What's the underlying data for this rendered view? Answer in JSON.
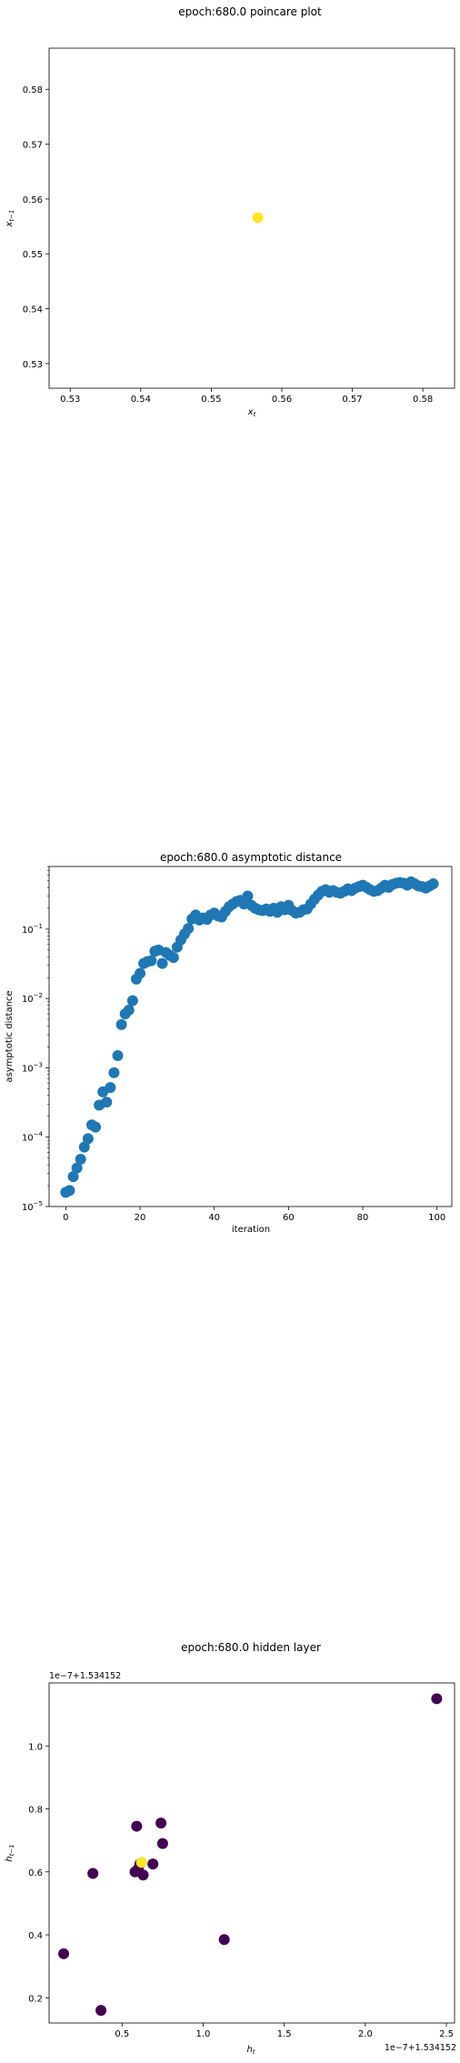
{
  "chart_data": [
    {
      "type": "scatter",
      "title": "epoch:680.0 poincare plot",
      "xlabel": "x_t",
      "ylabel": "x_{t-1}",
      "xlim": [
        0.527,
        0.5845
      ],
      "ylim": [
        0.5255,
        0.5875
      ],
      "xticks": [
        0.53,
        0.54,
        0.55,
        0.56,
        0.57,
        0.58
      ],
      "yticks": [
        0.53,
        0.54,
        0.55,
        0.56,
        0.57,
        0.58
      ],
      "xticklabels": [
        "0.53",
        "0.54",
        "0.55",
        "0.56",
        "0.57",
        "0.58"
      ],
      "yticklabels": [
        "0.53",
        "0.54",
        "0.55",
        "0.56",
        "0.57",
        "0.58"
      ],
      "points": [
        {
          "x": 0.5566,
          "y": 0.5566,
          "color": "#fde725"
        }
      ],
      "grid": false
    },
    {
      "type": "scatter",
      "title": "epoch:680.0 asymptotic distance",
      "xlabel": "iteration",
      "ylabel": "asymptotic distance",
      "xlim": [
        -4.5,
        104
      ],
      "ylog": true,
      "ylim": [
        1e-05,
        0.8
      ],
      "xticks": [
        0,
        20,
        40,
        60,
        80,
        100
      ],
      "xticklabels": [
        "0",
        "20",
        "40",
        "60",
        "80",
        "100"
      ],
      "yticks": [
        1e-05,
        0.0001,
        0.001,
        0.01,
        0.1
      ],
      "color": "#1f77b4",
      "x": [
        0,
        1,
        2,
        3,
        4,
        5,
        6,
        7,
        8,
        9,
        10,
        11,
        12,
        13,
        14,
        15,
        16,
        17,
        18,
        19,
        20,
        21,
        22,
        23,
        24,
        25,
        26,
        27,
        28,
        29,
        30,
        31,
        32,
        33,
        34,
        35,
        36,
        37,
        38,
        39,
        40,
        41,
        42,
        43,
        44,
        45,
        46,
        47,
        48,
        49,
        50,
        51,
        52,
        53,
        54,
        55,
        56,
        57,
        58,
        59,
        60,
        61,
        62,
        63,
        64,
        65,
        66,
        67,
        68,
        69,
        70,
        71,
        72,
        73,
        74,
        75,
        76,
        77,
        78,
        79,
        80,
        81,
        82,
        83,
        84,
        85,
        86,
        87,
        88,
        89,
        90,
        91,
        92,
        93,
        94,
        95,
        96,
        97,
        98,
        99
      ],
      "values": [
        1.6e-05,
        1.7e-05,
        2.7e-05,
        3.6e-05,
        4.8e-05,
        7.2e-05,
        9.5e-05,
        0.00015,
        0.00014,
        0.00029,
        0.00045,
        0.00032,
        0.00052,
        0.00085,
        0.0015,
        0.0042,
        0.006,
        0.0068,
        0.0093,
        0.019,
        0.023,
        0.032,
        0.034,
        0.035,
        0.048,
        0.05,
        0.032,
        0.046,
        0.042,
        0.039,
        0.055,
        0.07,
        0.085,
        0.102,
        0.14,
        0.16,
        0.135,
        0.145,
        0.138,
        0.16,
        0.17,
        0.155,
        0.15,
        0.18,
        0.21,
        0.23,
        0.25,
        0.26,
        0.23,
        0.3,
        0.22,
        0.2,
        0.19,
        0.185,
        0.195,
        0.18,
        0.2,
        0.175,
        0.21,
        0.19,
        0.22,
        0.185,
        0.17,
        0.175,
        0.19,
        0.195,
        0.23,
        0.27,
        0.31,
        0.35,
        0.37,
        0.34,
        0.36,
        0.34,
        0.33,
        0.35,
        0.38,
        0.36,
        0.39,
        0.41,
        0.43,
        0.4,
        0.37,
        0.35,
        0.36,
        0.39,
        0.43,
        0.4,
        0.44,
        0.46,
        0.47,
        0.46,
        0.43,
        0.48,
        0.45,
        0.42,
        0.41,
        0.39,
        0.42,
        0.45
      ],
      "grid": false
    },
    {
      "type": "scatter",
      "title": "epoch:680.0 hidden layer",
      "xlabel": "h_t",
      "ylabel": "h_{t-1}",
      "xlim": [
        0.05,
        2.55
      ],
      "ylim": [
        0.12,
        1.2
      ],
      "xticks": [
        0.5,
        1.0,
        1.5,
        2.0,
        2.5
      ],
      "yticks": [
        0.2,
        0.4,
        0.6,
        0.8,
        1.0
      ],
      "xticklabels": [
        "0.5",
        "1.0",
        "1.5",
        "2.0",
        "2.5"
      ],
      "yticklabels": [
        "0.2",
        "0.4",
        "0.6",
        "0.8",
        "1.0"
      ],
      "x_offset_text": "1e−7+1.534152",
      "y_offset_text": "1e−7+1.534152",
      "points": [
        {
          "x": 0.14,
          "y": 0.34,
          "color": "#440154"
        },
        {
          "x": 0.32,
          "y": 0.595,
          "color": "#440154"
        },
        {
          "x": 0.37,
          "y": 0.16,
          "color": "#440154"
        },
        {
          "x": 0.59,
          "y": 0.745,
          "color": "#440154"
        },
        {
          "x": 0.58,
          "y": 0.6,
          "color": "#440154"
        },
        {
          "x": 0.6,
          "y": 0.61,
          "color": "#440154"
        },
        {
          "x": 0.61,
          "y": 0.625,
          "color": "#440154"
        },
        {
          "x": 0.63,
          "y": 0.59,
          "color": "#440154"
        },
        {
          "x": 0.69,
          "y": 0.625,
          "color": "#440154"
        },
        {
          "x": 0.74,
          "y": 0.755,
          "color": "#440154"
        },
        {
          "x": 0.75,
          "y": 0.69,
          "color": "#440154"
        },
        {
          "x": 1.13,
          "y": 0.385,
          "color": "#440154"
        },
        {
          "x": 2.44,
          "y": 1.15,
          "color": "#440154"
        },
        {
          "x": 0.62,
          "y": 0.63,
          "color": "#fde725"
        }
      ],
      "grid": false
    }
  ]
}
